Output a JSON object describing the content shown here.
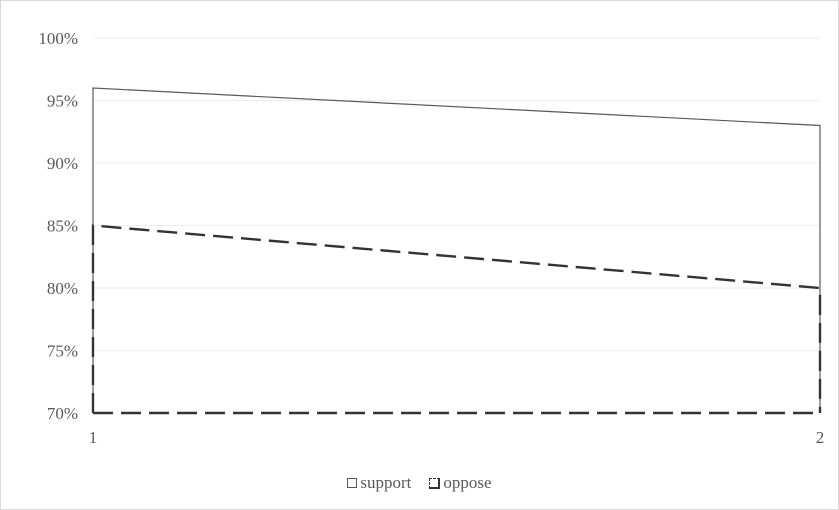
{
  "chart_data": {
    "type": "area",
    "x": [
      1,
      2
    ],
    "categories": [
      "1",
      "2"
    ],
    "series": [
      {
        "name": "support",
        "values": [
          0.96,
          0.93
        ],
        "line_style": "solid",
        "color": "#595959"
      },
      {
        "name": "oppose",
        "values": [
          0.85,
          0.8
        ],
        "line_style": "dashed",
        "color": "#333333"
      }
    ],
    "y_ticks": [
      "70%",
      "75%",
      "80%",
      "85%",
      "90%",
      "95%",
      "100%"
    ],
    "ylim": [
      0.7,
      1.0
    ],
    "grid": true,
    "legend_position": "bottom",
    "title": "",
    "xlabel": "",
    "ylabel": ""
  }
}
